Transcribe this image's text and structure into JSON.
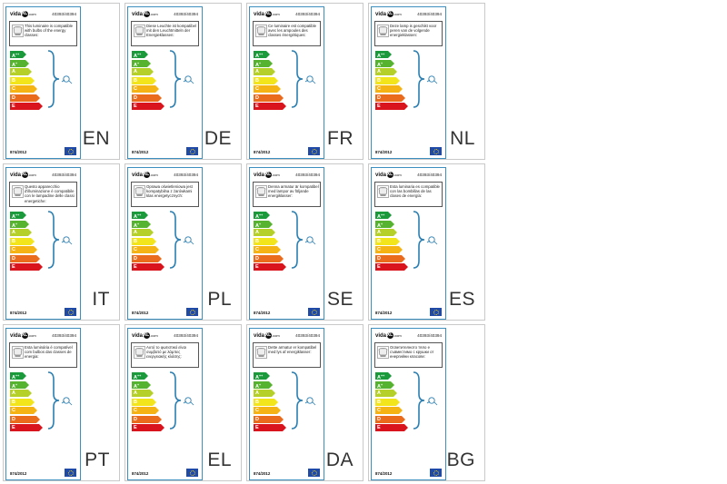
{
  "brand": {
    "name_left": "vida",
    "name_mid": "XL",
    "name_right": ".com"
  },
  "product_code": "40393/40394",
  "regulation": "874/2012",
  "icons": {
    "bulb": "lamp-bulb-icon",
    "brace": "curly-brace-icon",
    "eu": "eu-flag-icon"
  },
  "energy_classes": [
    {
      "letter": "A",
      "plus": "++",
      "color": "#1a9a3a"
    },
    {
      "letter": "A",
      "plus": "+",
      "color": "#55b32f"
    },
    {
      "letter": "A",
      "plus": "",
      "color": "#b6d02a"
    },
    {
      "letter": "B",
      "plus": "",
      "color": "#f2e51b"
    },
    {
      "letter": "C",
      "plus": "",
      "color": "#f6b414"
    },
    {
      "letter": "D",
      "plus": "",
      "color": "#ea6b1c"
    },
    {
      "letter": "E",
      "plus": "",
      "color": "#d9141d"
    }
  ],
  "labels": [
    {
      "lang": "EN",
      "text": "This luminaire is compatible with bulbs of the energy classes:"
    },
    {
      "lang": "DE",
      "text": "Diese Leuchte ist kompatibel mit den Leuchtmitteln der Energieklassen:"
    },
    {
      "lang": "FR",
      "text": "Ce luminaire est compatible avec les ampoules des classes énergétiques:"
    },
    {
      "lang": "NL",
      "text": "Deze lamp is geschikt voor peren van de volgende energieklassen:"
    },
    {
      "lang": "IT",
      "text": "Questo apparecchio d'illuminazione è compatibile con le lampadine delle classi energetiche:"
    },
    {
      "lang": "PL",
      "text": "Oprawa oświetleniowa jest kompatybilna z żarówkami klas energetycznych:"
    },
    {
      "lang": "SE",
      "text": "Denna armatur är kompatibel med lampor av följande energiklasser:"
    },
    {
      "lang": "ES",
      "text": "Esta luminaria es compatible con las bombillas de las clases de energía:"
    },
    {
      "lang": "PT",
      "text": "Esta luminária é compatível com bulbos das classes de energia:"
    },
    {
      "lang": "EL",
      "text": "Αυτό το φωτιστικό είναι συμβατό με λάμπες ενεργειακής κλάσης:"
    },
    {
      "lang": "DA",
      "text": "Dette armatur er kompatibel med lys af energiklasser:"
    },
    {
      "lang": "BG",
      "text": "Осветителното тяло е съвместимо с крушки от енергийни класове:"
    }
  ]
}
